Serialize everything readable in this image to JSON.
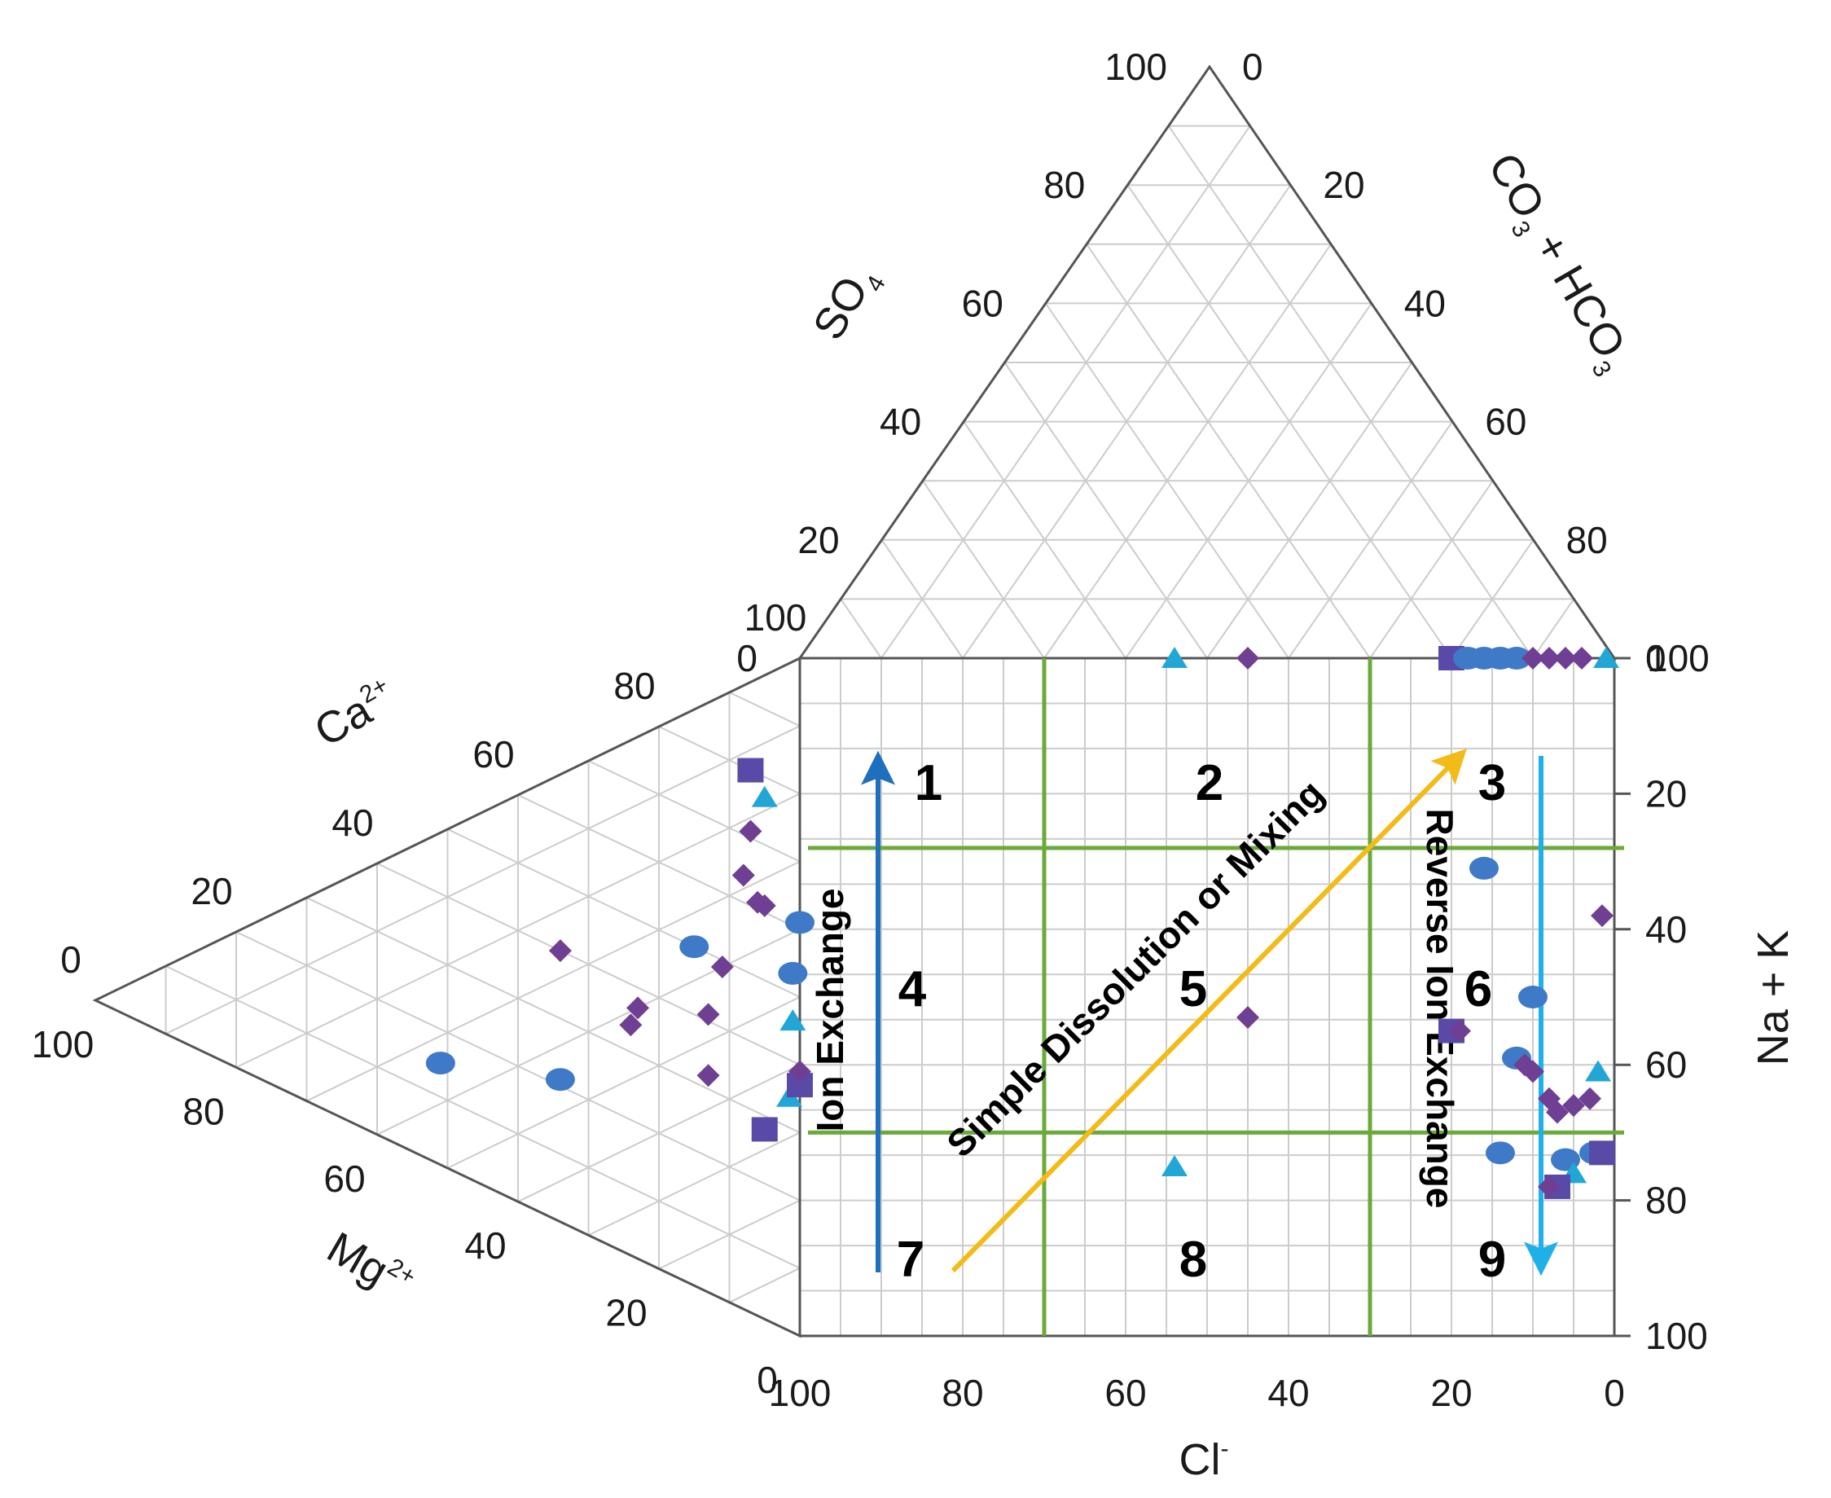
{
  "chart_data": {
    "type": "scatter",
    "diagram": "piper",
    "ticks": [
      "0",
      "20",
      "40",
      "60",
      "80",
      "100"
    ],
    "axes": {
      "cl": {
        "label": "Cl",
        "sup": "-",
        "range": [
          100,
          0
        ]
      },
      "na_k": {
        "label": "Na + K",
        "range": [
          0,
          100
        ]
      },
      "ca": {
        "label": "Ca",
        "sup": "2+"
      },
      "mg": {
        "label": "Mg",
        "sup": "2+"
      },
      "so4": {
        "label": "SO",
        "sub": "4"
      },
      "co3_hco3": {
        "label_parts": [
          "CO",
          "3",
          " + HCO",
          "3"
        ]
      }
    },
    "zones": [
      "1",
      "2",
      "3",
      "4",
      "5",
      "6",
      "7",
      "8",
      "9"
    ],
    "zone_bounds": {
      "cl": [
        70,
        30
      ],
      "na_k": [
        28,
        70
      ]
    },
    "annotations": {
      "ion_exchange": "Ion Exchange",
      "reverse_ion_exchange": "Reverse Ion Exchange",
      "mixing": "Simple Dissolution or Mixing"
    },
    "colors": {
      "zone_lines": "#6aaa3a",
      "ion_exchange_arrow": "#1f6fbf",
      "reverse_arrow": "#1fb0e8",
      "mixing_arrow": "#f2bb17",
      "circle": "#3f7ac8",
      "diamond": "#6f3f93",
      "square": "#5a4aa8",
      "triangle": "#22a6d6",
      "grid": "#cccccc"
    },
    "square_points": [
      {
        "marker": "triangle",
        "cl": 54,
        "na_k": 0
      },
      {
        "marker": "diamond",
        "cl": 45,
        "na_k": 0
      },
      {
        "marker": "square",
        "cl": 20,
        "na_k": 0
      },
      {
        "marker": "circle",
        "cl": 18,
        "na_k": 0
      },
      {
        "marker": "circle",
        "cl": 16,
        "na_k": 0
      },
      {
        "marker": "circle",
        "cl": 14,
        "na_k": 0
      },
      {
        "marker": "circle",
        "cl": 12,
        "na_k": 0
      },
      {
        "marker": "diamond",
        "cl": 10,
        "na_k": 0
      },
      {
        "marker": "diamond",
        "cl": 8,
        "na_k": 0
      },
      {
        "marker": "diamond",
        "cl": 6,
        "na_k": 0
      },
      {
        "marker": "diamond",
        "cl": 4,
        "na_k": 0
      },
      {
        "marker": "triangle",
        "cl": 1,
        "na_k": 0
      },
      {
        "marker": "circle",
        "cl": 16,
        "na_k": 31
      },
      {
        "marker": "diamond",
        "cl": 1.5,
        "na_k": 38
      },
      {
        "marker": "diamond",
        "cl": 45,
        "na_k": 53
      },
      {
        "marker": "circle",
        "cl": 10,
        "na_k": 50
      },
      {
        "marker": "square",
        "cl": 20,
        "na_k": 55
      },
      {
        "marker": "diamond",
        "cl": 19,
        "na_k": 55
      },
      {
        "marker": "circle",
        "cl": 12,
        "na_k": 59
      },
      {
        "marker": "diamond",
        "cl": 11,
        "na_k": 60
      },
      {
        "marker": "diamond",
        "cl": 10,
        "na_k": 61
      },
      {
        "marker": "triangle",
        "cl": 2,
        "na_k": 61
      },
      {
        "marker": "diamond",
        "cl": 3,
        "na_k": 65
      },
      {
        "marker": "diamond",
        "cl": 5,
        "na_k": 66
      },
      {
        "marker": "diamond",
        "cl": 7,
        "na_k": 67
      },
      {
        "marker": "diamond",
        "cl": 8,
        "na_k": 65
      },
      {
        "marker": "circle",
        "cl": 14,
        "na_k": 73
      },
      {
        "marker": "triangle",
        "cl": 54,
        "na_k": 75
      },
      {
        "marker": "circle",
        "cl": 6,
        "na_k": 74
      },
      {
        "marker": "circle",
        "cl": 2.5,
        "na_k": 73
      },
      {
        "marker": "square",
        "cl": 1.5,
        "na_k": 73
      },
      {
        "marker": "triangle",
        "cl": 5,
        "na_k": 76
      },
      {
        "marker": "square",
        "cl": 7,
        "na_k": 78
      },
      {
        "marker": "diamond",
        "cl": 8,
        "na_k": 78
      }
    ],
    "cation_points": [
      {
        "marker": "circle",
        "na_k": 34,
        "ca": 51
      },
      {
        "marker": "diamond",
        "na_k": 26,
        "ca": 34
      },
      {
        "marker": "circle",
        "na_k": 45,
        "ca": 34
      },
      {
        "marker": "diamond",
        "na_k": 40,
        "ca": 23
      },
      {
        "marker": "diamond",
        "na_k": 42,
        "ca": 24
      },
      {
        "marker": "square",
        "na_k": 13,
        "ca": 7
      },
      {
        "marker": "triangle",
        "na_k": 18,
        "ca": 5
      },
      {
        "marker": "diamond",
        "na_k": 22,
        "ca": 7
      },
      {
        "marker": "diamond",
        "na_k": 28,
        "ca": 8
      },
      {
        "marker": "diamond",
        "na_k": 33,
        "ca": 6
      },
      {
        "marker": "diamond",
        "na_k": 34,
        "ca": 5
      },
      {
        "marker": "circle",
        "na_k": 35,
        "ca": 15
      },
      {
        "marker": "diamond",
        "na_k": 40,
        "ca": 11
      },
      {
        "marker": "diamond",
        "na_k": 46,
        "ca": 13
      },
      {
        "marker": "diamond",
        "na_k": 55,
        "ca": 13
      },
      {
        "marker": "circle",
        "na_k": 39,
        "ca": 0
      },
      {
        "marker": "circle",
        "na_k": 46,
        "ca": 1
      },
      {
        "marker": "triangle",
        "na_k": 53,
        "ca": 1
      },
      {
        "marker": "square",
        "na_k": 67,
        "ca": 5
      },
      {
        "marker": "triangle",
        "na_k": 64,
        "ca": 1.5
      },
      {
        "marker": "square",
        "na_k": 63,
        "ca": 0
      },
      {
        "marker": "diamond",
        "na_k": 61,
        "ca": 0
      }
    ],
    "anion_points": []
  }
}
